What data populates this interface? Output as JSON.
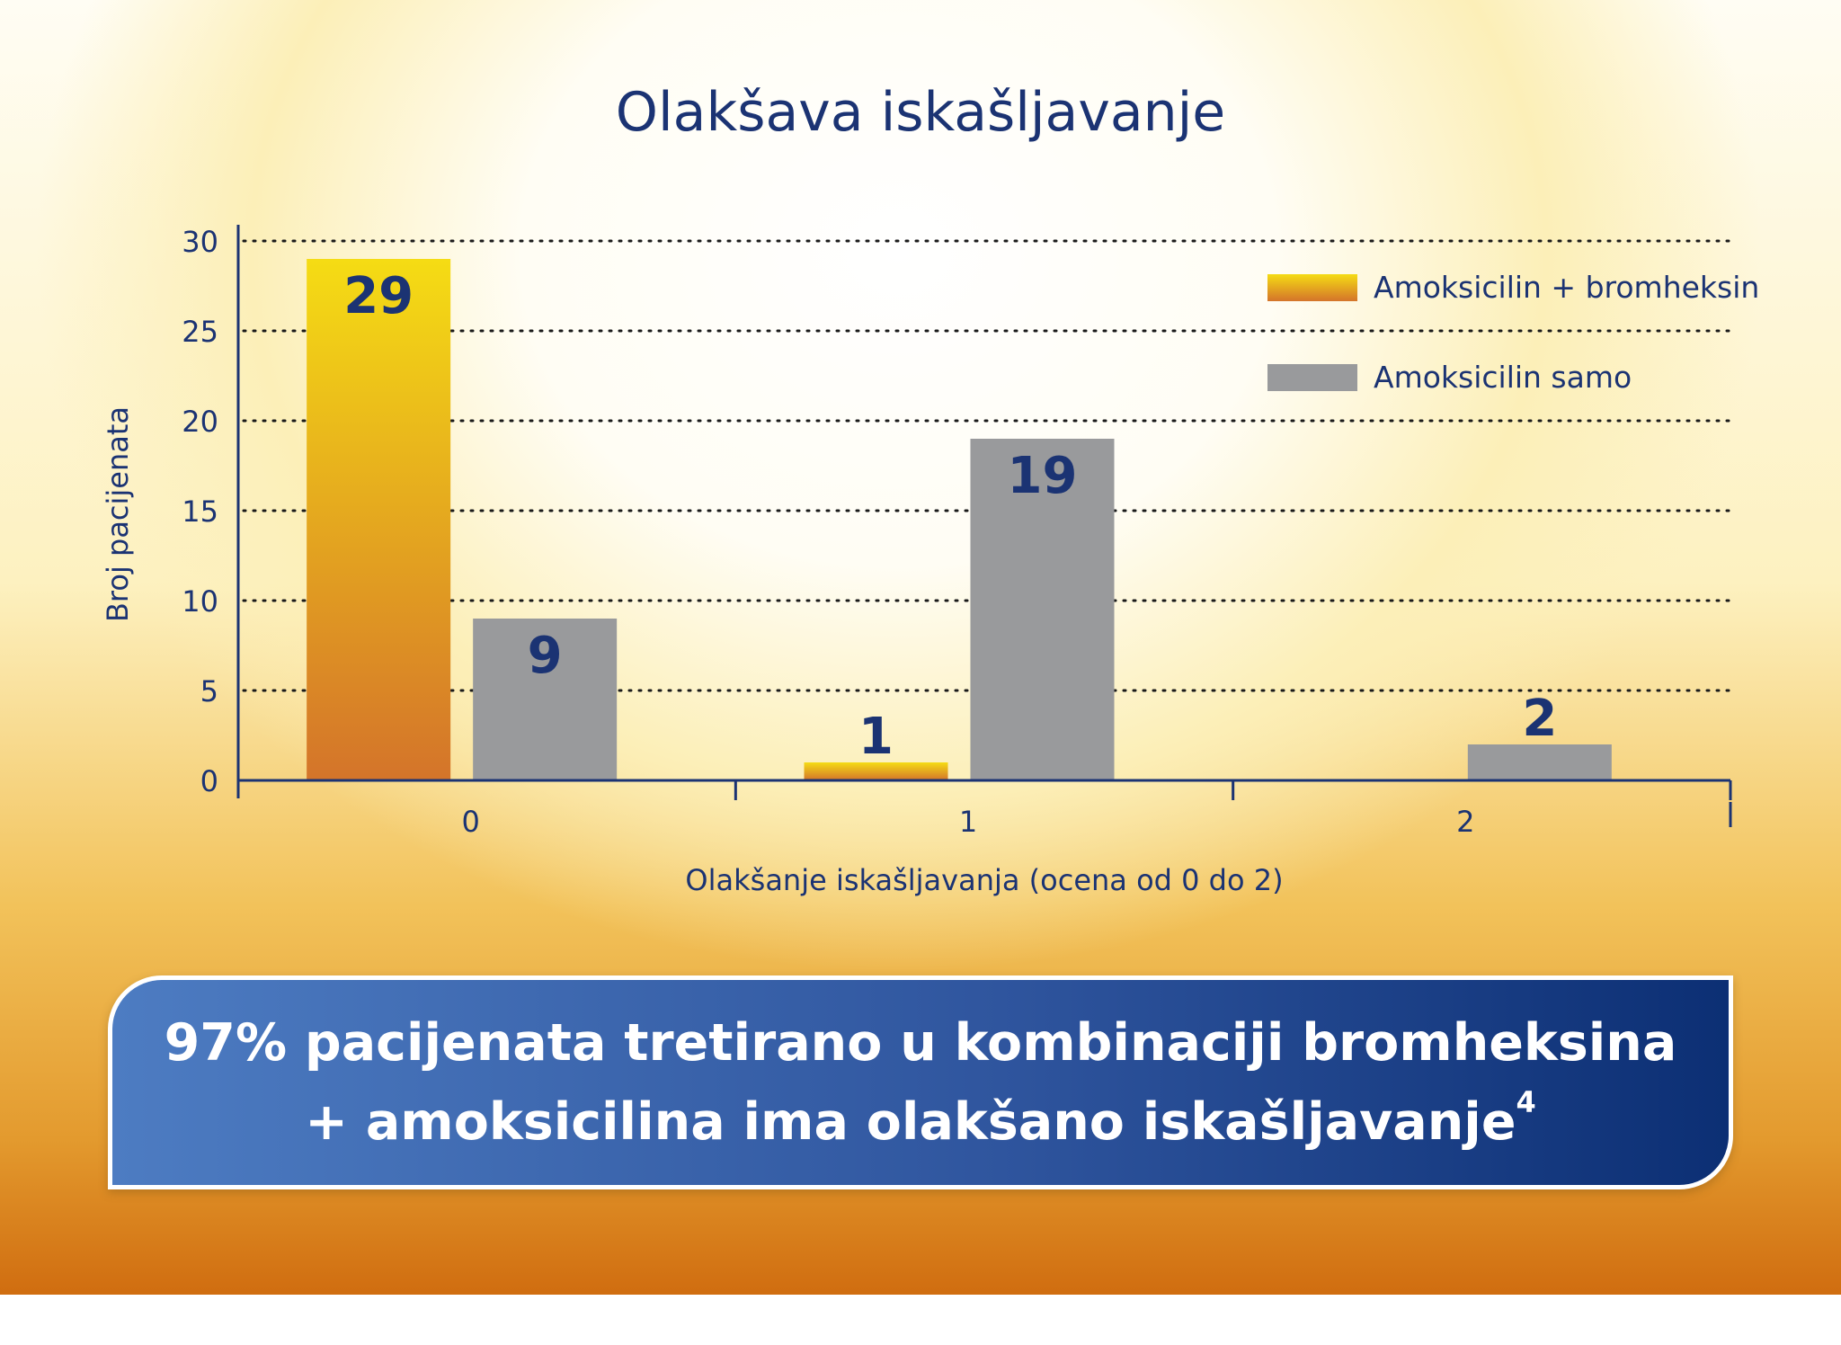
{
  "chart_data": {
    "type": "bar",
    "title": "Olakšava iskašljavanje",
    "xlabel": "Olakšanje iskašljavanja (ocena od 0 do 2)",
    "ylabel": "Broj pacijenata",
    "categories": [
      "0",
      "1",
      "2"
    ],
    "ylim": [
      0,
      30
    ],
    "yticks": [
      "0",
      "5",
      "10",
      "15",
      "20",
      "25",
      "30"
    ],
    "grid": true,
    "legend_position": "top-right",
    "series": [
      {
        "name": "Amoksicilin + bromheksin",
        "values": [
          29,
          1,
          null
        ],
        "labels": [
          "29",
          "1",
          ""
        ],
        "color_top": "#f5dc14",
        "color_bottom": "#d4742a"
      },
      {
        "name": "Amoksicilin samo",
        "values": [
          9,
          19,
          2
        ],
        "labels": [
          "9",
          "19",
          "2"
        ],
        "color": "#999a9c"
      }
    ]
  },
  "banner": {
    "line1": "97% pacijenata tretirano u kombinaciji bromheksina",
    "line2": "+ amoksicilina ima olakšano iskašljavanje",
    "superscript": "4"
  },
  "colors": {
    "text_blue": "#1b3373",
    "label_white": "#ffffff",
    "label_gray": "#5a5b5d",
    "grid_dots": "#1a1a1a"
  }
}
